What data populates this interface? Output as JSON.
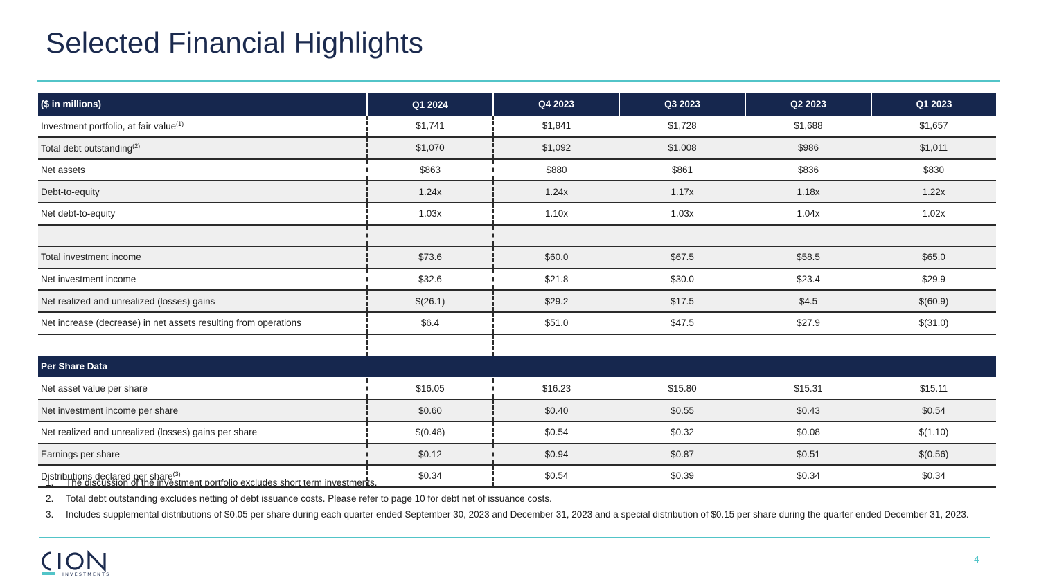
{
  "title": "Selected Financial Highlights",
  "table": {
    "unit_label": "($ in millions)",
    "columns": [
      "Q1 2024",
      "Q4 2023",
      "Q3 2023",
      "Q2 2023",
      "Q1 2023"
    ],
    "rows": [
      {
        "label": "Investment portfolio, at fair value",
        "sup": "(1)",
        "values": [
          "$1,741",
          "$1,841",
          "$1,728",
          "$1,688",
          "$1,657"
        ]
      },
      {
        "label": "Total debt outstanding",
        "sup": "(2)",
        "values": [
          "$1,070",
          "$1,092",
          "$1,008",
          "$986",
          "$1,011"
        ]
      },
      {
        "label": "Net assets",
        "sup": "",
        "values": [
          "$863",
          "$880",
          "$861",
          "$836",
          "$830"
        ]
      },
      {
        "label": "Debt-to-equity",
        "sup": "",
        "values": [
          "1.24x",
          "1.24x",
          "1.17x",
          "1.18x",
          "1.22x"
        ]
      },
      {
        "label": "Net debt-to-equity",
        "sup": "",
        "values": [
          "1.03x",
          "1.10x",
          "1.03x",
          "1.04x",
          "1.02x"
        ]
      },
      {
        "label": "Total investment income",
        "sup": "",
        "values": [
          "$73.6",
          "$60.0",
          "$67.5",
          "$58.5",
          "$65.0"
        ]
      },
      {
        "label": "Net investment income",
        "sup": "",
        "values": [
          "$32.6",
          "$21.8",
          "$30.0",
          "$23.4",
          "$29.9"
        ]
      },
      {
        "label": "Net realized and unrealized (losses) gains",
        "sup": "",
        "values": [
          "$(26.1)",
          "$29.2",
          "$17.5",
          "$4.5",
          "$(60.9)"
        ]
      },
      {
        "label": "Net increase (decrease) in net assets resulting from operations",
        "sup": "",
        "values": [
          "$6.4",
          "$51.0",
          "$47.5",
          "$27.9",
          "$(31.0)"
        ]
      }
    ],
    "per_share_header": "Per Share Data",
    "per_share_rows": [
      {
        "label": "Net asset value per share",
        "sup": "",
        "values": [
          "$16.05",
          "$16.23",
          "$15.80",
          "$15.31",
          "$15.11"
        ]
      },
      {
        "label": "Net investment income per share",
        "sup": "",
        "values": [
          "$0.60",
          "$0.40",
          "$0.55",
          "$0.43",
          "$0.54"
        ]
      },
      {
        "label": "Net realized and unrealized (losses) gains per share",
        "sup": "",
        "values": [
          "$(0.48)",
          "$0.54",
          "$0.32",
          "$0.08",
          "$(1.10)"
        ]
      },
      {
        "label": "Earnings per share",
        "sup": "",
        "values": [
          "$0.12",
          "$0.94",
          "$0.87",
          "$0.51",
          "$(0.56)"
        ]
      },
      {
        "label": "Distributions declared per share",
        "sup": "(3)",
        "values": [
          "$0.34",
          "$0.54",
          "$0.39",
          "$0.34",
          "$0.34"
        ]
      }
    ]
  },
  "footnotes": [
    {
      "num": "1.",
      "text": "The discussion of the investment portfolio excludes short term investments."
    },
    {
      "num": "2.",
      "text": "Total debt outstanding excludes netting of debt issuance costs. Please refer to page 10 for debt net of issuance costs."
    },
    {
      "num": "3.",
      "text": "Includes supplemental distributions of $0.05 per share during each quarter ended September 30, 2023 and December 31, 2023 and a special distribution of $0.15 per share during the quarter ended December 31, 2023."
    }
  ],
  "logo": {
    "name": "CION",
    "tagline": "INVESTMENTS",
    "color_primary": "#1b2a4e",
    "color_accent": "#52c4c8"
  },
  "page_number": "4"
}
